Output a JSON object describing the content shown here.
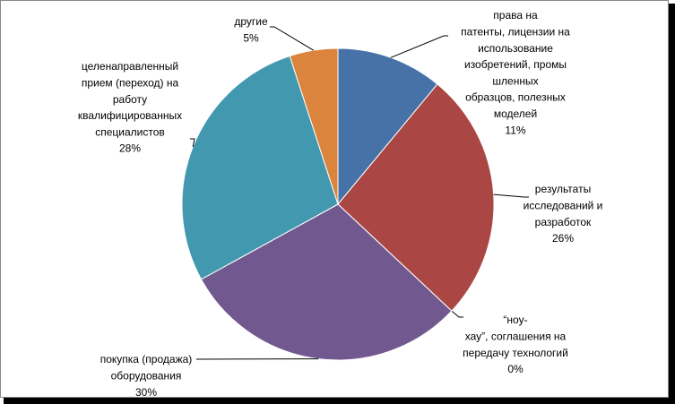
{
  "chart_data": {
    "type": "pie",
    "categories": [
      [
        "права на",
        "патенты, лицензии на",
        "использование",
        "изобретений, промы",
        "шленных",
        "образцов, полезных",
        "моделей"
      ],
      [
        "результаты",
        "исследований и",
        "разработок"
      ],
      [
        "“ноу-",
        "хау”, соглашения на",
        "передачу технологий"
      ],
      [
        "покупка (продажа)",
        "оборудования"
      ],
      [
        "целенаправленный",
        "прием (переход) на",
        "работу",
        "квалифицированных",
        "специалистов"
      ],
      [
        "другие"
      ]
    ],
    "values": [
      11,
      26,
      0,
      30,
      28,
      5
    ],
    "value_labels": [
      "11%",
      "26%",
      "0%",
      "30%",
      "28%",
      "5%"
    ],
    "colors": [
      "#4672a8",
      "#aa4643",
      "#89a54e",
      "#71588f",
      "#4198af",
      "#db843d"
    ]
  }
}
